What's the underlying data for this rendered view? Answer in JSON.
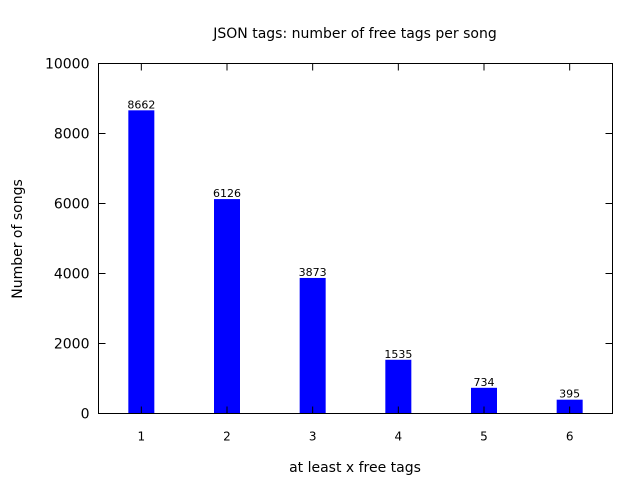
{
  "chart_data": {
    "type": "bar",
    "title": "JSON tags: number of free tags per song",
    "xlabel": "at least x free tags",
    "ylabel": "Number of songs",
    "categories": [
      "1",
      "2",
      "3",
      "4",
      "5",
      "6"
    ],
    "values": [
      8662,
      6126,
      3873,
      1535,
      734,
      395
    ],
    "data_labels": [
      "8662",
      "6126",
      "3873",
      "1535",
      "734",
      "395"
    ],
    "ylim": [
      0,
      10000
    ],
    "yticks": [
      0,
      2000,
      4000,
      6000,
      8000,
      10000
    ],
    "ytick_labels": [
      "0",
      "2000",
      "4000",
      "6000",
      "8000",
      "10000"
    ],
    "grid": false,
    "legend": "none",
    "colors": {
      "bar": "#0000ff",
      "axis": "#000000"
    }
  }
}
